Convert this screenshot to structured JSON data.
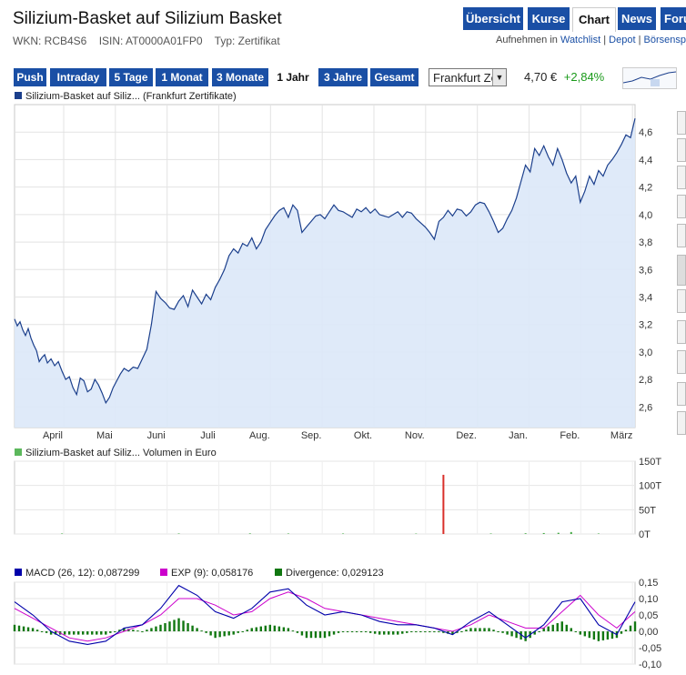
{
  "header": {
    "title": "Silizium-Basket auf Silizium Basket",
    "wkn": "WKN: RCB4S6",
    "isin": "ISIN: AT0000A01FP0",
    "type": "Typ: Zertifikat"
  },
  "nav": {
    "tabs": [
      {
        "label": "Übersicht",
        "active": false
      },
      {
        "label": "Kurse",
        "active": false
      },
      {
        "label": "Chart",
        "active": true
      },
      {
        "label": "News",
        "active": false
      },
      {
        "label": "Foru",
        "active": false
      }
    ]
  },
  "actions": {
    "prefix": "Aufnehmen in",
    "watchlist": "Watchlist",
    "depot": "Depot",
    "boerse": "Börsensp"
  },
  "ranges": {
    "buttons": [
      {
        "label": "Push",
        "active": false
      },
      {
        "label": "Intraday",
        "active": false
      },
      {
        "label": "5 Tage",
        "active": false
      },
      {
        "label": "1 Monat",
        "active": false
      },
      {
        "label": "3 Monate",
        "active": false
      },
      {
        "label": "1 Jahr",
        "active": true
      },
      {
        "label": "3 Jahre",
        "active": false
      },
      {
        "label": "Gesamt",
        "active": false
      }
    ]
  },
  "exchange_select": {
    "value": "Frankfurt Zertifikate"
  },
  "quote": {
    "price": "4,70 €",
    "change": "+2,84%"
  },
  "colors": {
    "accent": "#1a4fa5",
    "line": "#1b3f8c",
    "area": "#dce8f8",
    "positive": "#1a9a1a",
    "volume_spike": "#d9302a",
    "macd": "#0000aa",
    "exp": "#cc00cc",
    "divergence": "#117711"
  },
  "chart_data": [
    {
      "type": "area",
      "legend": "Silizium-Basket auf Siliz... (Frankfurt Zertifikate)",
      "x_tick_labels": [
        "April",
        "Mai",
        "Juni",
        "Juli",
        "Aug.",
        "Sep.",
        "Okt.",
        "Nov.",
        "Dez.",
        "Jan.",
        "Feb.",
        "März"
      ],
      "ylim": [
        2.45,
        4.8
      ],
      "y_ticks": [
        2.6,
        2.8,
        3.0,
        3.2,
        3.4,
        3.6,
        3.8,
        4.0,
        4.2,
        4.4,
        4.6
      ],
      "y_tick_labels": [
        "2,6",
        "2,8",
        "3,0",
        "3,2",
        "3,4",
        "3,6",
        "3,8",
        "4,0",
        "4,2",
        "4,4",
        "4,6"
      ],
      "x": [
        0,
        3,
        6,
        9,
        12,
        15,
        18,
        21,
        24,
        27,
        30,
        33,
        36,
        40,
        44,
        48,
        52,
        56,
        60,
        64,
        68,
        72,
        76,
        80,
        84,
        88,
        92,
        96,
        100,
        104,
        108,
        112,
        116,
        120,
        125,
        130,
        135,
        140,
        145,
        150,
        155,
        160,
        165,
        170,
        175,
        180,
        185,
        190,
        195,
        200,
        205,
        210,
        215,
        220,
        225,
        230,
        235,
        240,
        245,
        250,
        255,
        260,
        265,
        270,
        275,
        280,
        285,
        290,
        295,
        300,
        305,
        310,
        315,
        320,
        325,
        330,
        335,
        340,
        345,
        350,
        355,
        360,
        365,
        370,
        375,
        380,
        385,
        390,
        395,
        400,
        405,
        410,
        415,
        420,
        425,
        430,
        435,
        440,
        445,
        450,
        455,
        460,
        465,
        470,
        475,
        480,
        485,
        490,
        495,
        500,
        505,
        510,
        515,
        520,
        525,
        530,
        535,
        540,
        545,
        550,
        555,
        560,
        565,
        570,
        575,
        580,
        585,
        590,
        595,
        600,
        605,
        610,
        615,
        620,
        625,
        630,
        635,
        640,
        645,
        650,
        655,
        660,
        665,
        670,
        675,
        680
      ],
      "y": [
        3.24,
        3.19,
        3.22,
        3.16,
        3.12,
        3.17,
        3.1,
        3.05,
        3.01,
        2.93,
        2.96,
        2.98,
        2.92,
        2.95,
        2.9,
        2.93,
        2.86,
        2.8,
        2.82,
        2.74,
        2.69,
        2.81,
        2.79,
        2.71,
        2.73,
        2.8,
        2.76,
        2.7,
        2.63,
        2.67,
        2.74,
        2.79,
        2.84,
        2.88,
        2.86,
        2.89,
        2.88,
        2.95,
        3.02,
        3.2,
        3.44,
        3.39,
        3.36,
        3.32,
        3.31,
        3.37,
        3.41,
        3.33,
        3.45,
        3.4,
        3.35,
        3.42,
        3.38,
        3.47,
        3.53,
        3.6,
        3.7,
        3.75,
        3.72,
        3.79,
        3.77,
        3.83,
        3.75,
        3.8,
        3.89,
        3.94,
        3.99,
        4.03,
        4.05,
        3.98,
        4.07,
        4.03,
        3.87,
        3.91,
        3.95,
        3.99,
        4.0,
        3.97,
        4.02,
        4.07,
        4.03,
        4.02,
        4.0,
        3.98,
        4.04,
        4.02,
        4.05,
        4.01,
        4.04,
        4.0,
        3.99,
        3.98,
        4.0,
        4.02,
        3.98,
        4.02,
        4.01,
        3.97,
        3.94,
        3.91,
        3.87,
        3.82,
        3.95,
        3.98,
        4.03,
        3.99,
        4.04,
        4.03,
        3.99,
        4.02,
        4.07,
        4.09,
        4.08,
        4.02,
        3.95,
        3.87,
        3.9,
        3.97,
        4.03,
        4.12,
        4.24,
        4.36,
        4.31,
        4.48,
        4.43,
        4.5,
        4.42,
        4.36,
        4.48,
        4.4,
        4.3,
        4.23,
        4.28,
        4.09,
        4.17,
        4.28,
        4.22,
        4.32,
        4.28,
        4.36,
        4.4,
        4.45,
        4.51,
        4.58,
        4.56,
        4.7
      ]
    },
    {
      "type": "bar",
      "legend": "Silizium-Basket auf Siliz... Volumen in Euro",
      "y_tick_labels": [
        "150T",
        "100T",
        "50T",
        "0T"
      ],
      "ylim": [
        0,
        150
      ],
      "y_ticks": [
        150,
        100,
        50,
        0
      ],
      "x": [
        52,
        180,
        258,
        300,
        360,
        440,
        470,
        522,
        560,
        580,
        596,
        610,
        640
      ],
      "values": [
        1,
        1,
        1.2,
        1,
        1,
        0.8,
        122,
        1,
        1.5,
        2,
        2.5,
        4,
        1
      ],
      "spike_index": 6
    },
    {
      "type": "line",
      "legend_macd": "MACD (26, 12): 0,087299",
      "legend_exp": "EXP (9): 0,058176",
      "legend_div": "Divergence: 0,029123",
      "ylim": [
        -0.1,
        0.15
      ],
      "y_ticks": [
        0.15,
        0.1,
        0.05,
        0.0,
        -0.05,
        -0.1
      ],
      "y_tick_labels": [
        "0,15",
        "0,10",
        "0,05",
        "0,00",
        "-0,05",
        "-0,10"
      ],
      "x": [
        0,
        20,
        40,
        60,
        80,
        100,
        120,
        140,
        160,
        180,
        200,
        220,
        240,
        260,
        280,
        300,
        320,
        340,
        360,
        380,
        400,
        420,
        440,
        460,
        480,
        500,
        520,
        540,
        560,
        580,
        600,
        620,
        640,
        660,
        680
      ],
      "macd": [
        0.09,
        0.05,
        0.0,
        -0.03,
        -0.04,
        -0.03,
        0.01,
        0.02,
        0.07,
        0.14,
        0.11,
        0.06,
        0.04,
        0.07,
        0.12,
        0.13,
        0.08,
        0.05,
        0.06,
        0.05,
        0.03,
        0.02,
        0.02,
        0.01,
        -0.01,
        0.03,
        0.06,
        0.02,
        -0.02,
        0.02,
        0.09,
        0.1,
        0.02,
        -0.01,
        0.09
      ],
      "exp": [
        0.07,
        0.04,
        0.01,
        -0.02,
        -0.03,
        -0.02,
        0.0,
        0.02,
        0.05,
        0.1,
        0.1,
        0.08,
        0.05,
        0.06,
        0.1,
        0.12,
        0.1,
        0.07,
        0.06,
        0.05,
        0.04,
        0.03,
        0.02,
        0.01,
        0.0,
        0.02,
        0.05,
        0.03,
        0.01,
        0.01,
        0.06,
        0.11,
        0.05,
        0.01,
        0.06
      ]
    }
  ]
}
